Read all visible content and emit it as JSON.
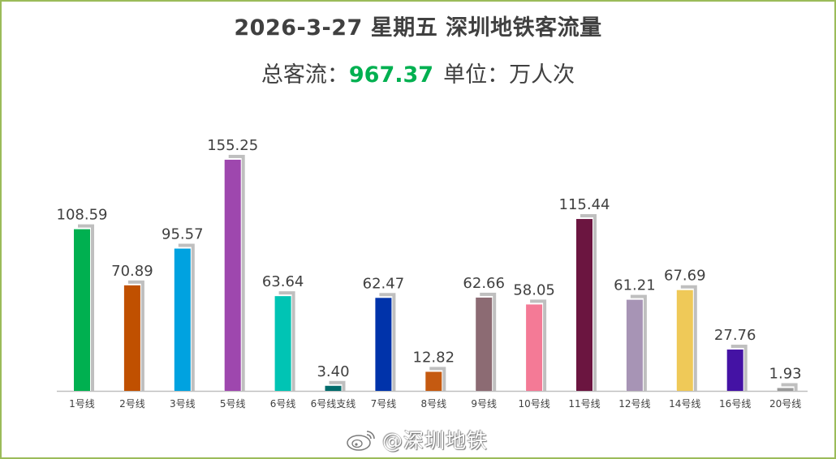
{
  "header": {
    "title": "2026-3-27 星期五  深圳地铁客流量",
    "total_label": "总客流：",
    "total_value": "967.37",
    "unit_label": "单位：万人次"
  },
  "watermark": {
    "text": "@深圳地铁"
  },
  "colors": {
    "border": "#9bbb59",
    "total_value": "#00b050",
    "bar_shadow": "#bfbfbf",
    "axis": "#bfbfbf",
    "text": "#404040"
  },
  "chart_data": {
    "type": "bar",
    "title": "2026-3-27 星期五  深圳地铁客流量",
    "ylim": [
      0,
      170
    ],
    "grid": false,
    "categories": [
      "1号线",
      "2号线",
      "3号线",
      "5号线",
      "6号线",
      "6号线支线",
      "7号线",
      "8号线",
      "9号线",
      "10号线",
      "11号线",
      "12号线",
      "14号线",
      "16号线",
      "20号线"
    ],
    "values": [
      108.59,
      70.89,
      95.57,
      155.25,
      63.64,
      3.4,
      62.47,
      12.82,
      62.66,
      58.05,
      115.44,
      61.21,
      67.69,
      27.76,
      1.93
    ],
    "labels": [
      "108.59",
      "70.89",
      "95.57",
      "155.25",
      "63.64",
      "3.40",
      "62.47",
      "12.82",
      "62.66",
      "58.05",
      "115.44",
      "61.21",
      "67.69",
      "27.76",
      "1.93"
    ],
    "bar_colors": [
      "#00b050",
      "#c05000",
      "#00a2e0",
      "#9e47ae",
      "#00c4b4",
      "#006b6b",
      "#0033aa",
      "#c55a11",
      "#8c6b73",
      "#f47a96",
      "#6b1540",
      "#a794b5",
      "#efc958",
      "#4412a4",
      "#9a9a9a"
    ]
  }
}
